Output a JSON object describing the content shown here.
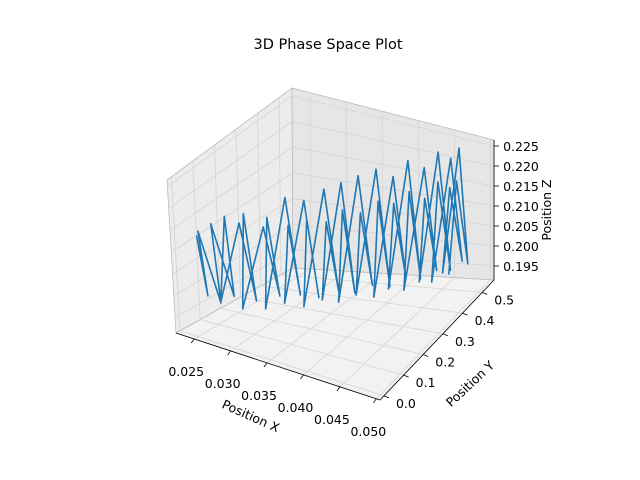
{
  "colors": {
    "line": "#1f77b4",
    "pane_left": "#ececec",
    "pane_right": "#e6e6e6",
    "pane_floor": "#f2f2f2",
    "grid": "#d4d4d4",
    "pane_edge": "#bcbcbc",
    "axis_line": "#000000"
  },
  "chart_data": {
    "type": "line",
    "projection": "3d",
    "title": "3D Phase Space Plot",
    "xlabel": "Position X",
    "ylabel": "Position Y",
    "zlabel": "Position Z",
    "xlim": [
      0.0225,
      0.0505
    ],
    "ylim": [
      -0.02,
      0.56
    ],
    "zlim": [
      0.1915,
      0.2265
    ],
    "xticks": [
      {
        "value": 0.025,
        "label": "0.025"
      },
      {
        "value": 0.03,
        "label": "0.030"
      },
      {
        "value": 0.035,
        "label": "0.035"
      },
      {
        "value": 0.04,
        "label": "0.040"
      },
      {
        "value": 0.045,
        "label": "0.045"
      },
      {
        "value": 0.05,
        "label": "0.050"
      }
    ],
    "yticks": [
      {
        "value": 0.0,
        "label": "0.0"
      },
      {
        "value": 0.1,
        "label": "0.1"
      },
      {
        "value": 0.2,
        "label": "0.2"
      },
      {
        "value": 0.3,
        "label": "0.3"
      },
      {
        "value": 0.4,
        "label": "0.4"
      },
      {
        "value": 0.5,
        "label": "0.5"
      }
    ],
    "zticks": [
      {
        "value": 0.195,
        "label": "0.195"
      },
      {
        "value": 0.2,
        "label": "0.200"
      },
      {
        "value": 0.205,
        "label": "0.205"
      },
      {
        "value": 0.21,
        "label": "0.210"
      },
      {
        "value": 0.215,
        "label": "0.215"
      },
      {
        "value": 0.22,
        "label": "0.220"
      },
      {
        "value": 0.225,
        "label": "0.225"
      }
    ],
    "grid": true,
    "series": [
      {
        "x": [
          0.024,
          0.0243,
          0.0248,
          0.0252,
          0.0257,
          0.0262,
          0.0267,
          0.0272,
          0.0278,
          0.0284,
          0.029,
          0.0296,
          0.0302,
          0.0308,
          0.0313,
          0.0319,
          0.0324,
          0.0328,
          0.0333,
          0.0337,
          0.0341,
          0.0345,
          0.035,
          0.0355,
          0.036,
          0.0364,
          0.0368,
          0.0372,
          0.0375,
          0.0378,
          0.0382,
          0.0386,
          0.039,
          0.0394,
          0.0398,
          0.0402,
          0.0406,
          0.041,
          0.0414,
          0.0418,
          0.0421,
          0.0424,
          0.0427,
          0.043,
          0.0433,
          0.0436,
          0.044,
          0.0443,
          0.0447,
          0.045,
          0.0453,
          0.0456,
          0.0458,
          0.0461,
          0.0463,
          0.0465,
          0.0467,
          0.0469,
          0.0471,
          0.0472,
          0.0473,
          0.0474,
          0.0475,
          0.0475
        ],
        "y": [
          0.05,
          0.08,
          0.03,
          0.11,
          0.06,
          0.14,
          0.09,
          0.04,
          0.12,
          0.17,
          0.1,
          0.06,
          0.15,
          0.2,
          0.13,
          0.09,
          0.18,
          0.23,
          0.16,
          0.12,
          0.21,
          0.26,
          0.19,
          0.15,
          0.24,
          0.29,
          0.22,
          0.18,
          0.27,
          0.32,
          0.25,
          0.21,
          0.3,
          0.35,
          0.28,
          0.24,
          0.33,
          0.38,
          0.31,
          0.27,
          0.36,
          0.41,
          0.34,
          0.3,
          0.39,
          0.44,
          0.37,
          0.33,
          0.42,
          0.47,
          0.4,
          0.36,
          0.45,
          0.5,
          0.43,
          0.39,
          0.48,
          0.53,
          0.46,
          0.42,
          0.5,
          0.54,
          0.48,
          0.44
        ],
        "z": [
          0.212,
          0.198,
          0.214,
          0.196,
          0.215,
          0.197,
          0.216,
          0.199,
          0.214,
          0.196,
          0.217,
          0.198,
          0.213,
          0.197,
          0.216,
          0.198,
          0.219,
          0.197,
          0.214,
          0.199,
          0.218,
          0.196,
          0.215,
          0.198,
          0.22,
          0.197,
          0.214,
          0.199,
          0.221,
          0.196,
          0.216,
          0.198,
          0.222,
          0.197,
          0.215,
          0.199,
          0.223,
          0.196,
          0.217,
          0.198,
          0.221,
          0.197,
          0.216,
          0.199,
          0.224,
          0.196,
          0.218,
          0.198,
          0.222,
          0.197,
          0.216,
          0.199,
          0.225,
          0.196,
          0.219,
          0.198,
          0.223,
          0.197,
          0.217,
          0.199,
          0.225,
          0.196,
          0.218,
          0.198
        ]
      }
    ]
  }
}
